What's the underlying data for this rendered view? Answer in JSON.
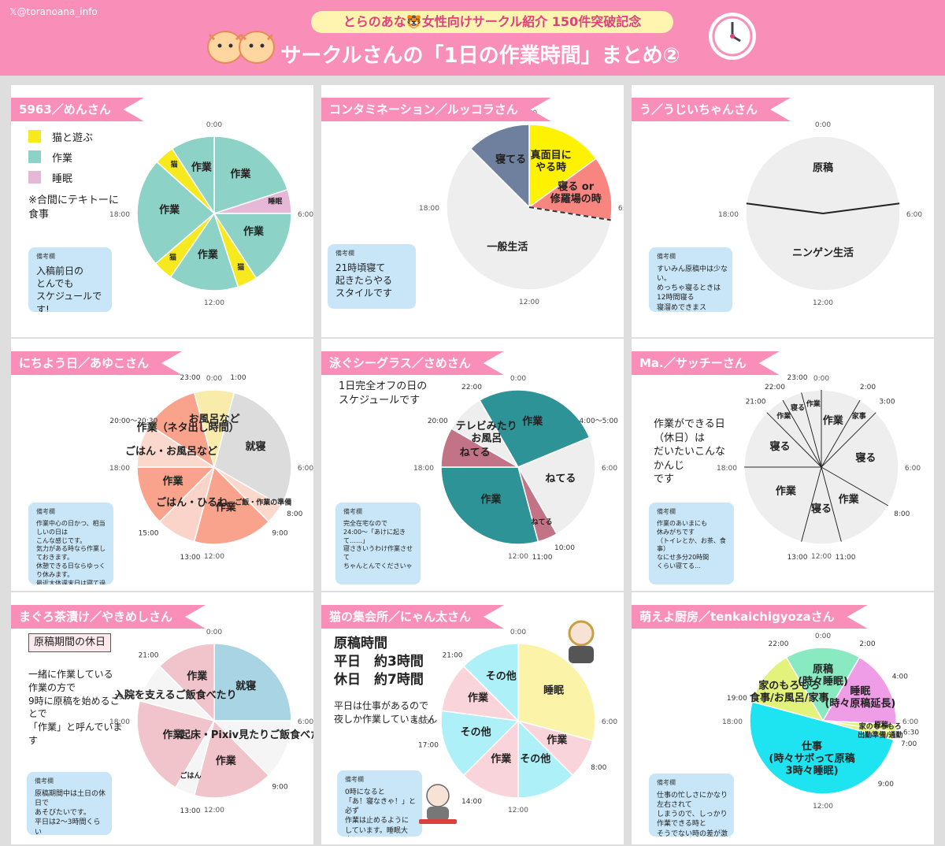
{
  "header": {
    "account": "@toranoana_info",
    "badge": "とらのあな🐯女性向けサークル紹介 150件突破記念",
    "title": "サークルさんの「1日の作業時間」まとめ②"
  },
  "note_label": "備考欄",
  "chart_data": [
    {
      "type": "pie",
      "title": "5963／めんさん",
      "hour_labels": [
        "0:00",
        "6:00",
        "12:00",
        "18:00"
      ],
      "legend": [
        {
          "label": "猫と遊ぶ",
          "color": "#f6ea1f"
        },
        {
          "label": "作業",
          "color": "#8dd2c6"
        },
        {
          "label": "睡眠",
          "color": "#e5b8d8"
        }
      ],
      "legend_note": "※合間にテキトーに\n食事",
      "note": "入稿前日の\nとんでも\nスケジュールです!",
      "slices": [
        {
          "label": "作業",
          "start": 0,
          "end": 4.8,
          "color": "#8dd2c6"
        },
        {
          "label": "睡眠",
          "start": 4.8,
          "end": 6,
          "color": "#e5b8d8"
        },
        {
          "label": "作業",
          "start": 6,
          "end": 9.8,
          "color": "#8dd2c6"
        },
        {
          "label": "猫",
          "start": 9.8,
          "end": 10.8,
          "color": "#f6ea1f"
        },
        {
          "label": "作業",
          "start": 10.8,
          "end": 14.3,
          "color": "#8dd2c6"
        },
        {
          "label": "猫",
          "start": 14.3,
          "end": 15.3,
          "color": "#f6ea1f"
        },
        {
          "label": "作業",
          "start": 15.3,
          "end": 20.8,
          "color": "#8dd2c6"
        },
        {
          "label": "猫",
          "start": 20.8,
          "end": 21.8,
          "color": "#f6ea1f"
        },
        {
          "label": "作業",
          "start": 21.8,
          "end": 24,
          "color": "#8dd2c6"
        }
      ]
    },
    {
      "type": "pie",
      "title": "コンタミネーション／ルッコラさん",
      "hour_labels": [
        "0:00",
        "6:00",
        "12:00",
        "18:00"
      ],
      "note": "21時頃寝て\n起きたらやる\nスタイルです",
      "slices": [
        {
          "label": "真面目に\nやる時",
          "start": 0,
          "end": 3.6,
          "color": "#fff200"
        },
        {
          "label": "寝る or\n修羅場の時",
          "start": 3.6,
          "end": 6.6,
          "color": "#f8857f"
        },
        {
          "label": "一般生活",
          "start": 6.6,
          "end": 21,
          "color": "#eeeeee"
        },
        {
          "label": "寝てる",
          "start": 21,
          "end": 24,
          "color": "#6f7f9e"
        }
      ]
    },
    {
      "type": "pie",
      "title": "う／うじいちゃんさん",
      "hour_labels": [
        "0:00",
        "6:00",
        "12:00",
        "18:00"
      ],
      "note": "すいみん原稿中は少ない。\nめっちゃ寝るときは\n12時間寝る\n寝溜めできまス",
      "slices": [
        {
          "label": "原稿",
          "start": 18.5,
          "end": 29.5,
          "color": "#eeeeee"
        },
        {
          "label": "ニンゲン生活",
          "start": 5.5,
          "end": 18.5,
          "color": "#eeeeee"
        }
      ]
    },
    {
      "type": "pie",
      "title": "にちよう日／あゆこさん",
      "hour_labels": [
        "0:00",
        "6:00",
        "12:00",
        "18:00"
      ],
      "tick_labels": [
        "1:00",
        "8:00",
        "9:00",
        "13:00",
        "15:00",
        "20:00〜20:30",
        "23:00"
      ],
      "note": "作業中心の日かつ、相当しいの日は\nこんな感じです。\n気力がある時なら作業しておきます。\n休憩できる日ならゆっくり休みます。\n最近大体週末日は寝て過ごしてます…",
      "slices": [
        {
          "label": "就寝",
          "start": 1,
          "end": 8,
          "color": "#dcdcdc"
        },
        {
          "label": "ご飯・作業の準備",
          "start": 8,
          "end": 9,
          "color": "#fad9cc"
        },
        {
          "label": "作業",
          "start": 9,
          "end": 13,
          "color": "#f9a38d"
        },
        {
          "label": "ごはん・ひるね",
          "start": 13,
          "end": 15,
          "color": "#fad4c8"
        },
        {
          "label": "作業",
          "start": 15,
          "end": 18,
          "color": "#f9a38d"
        },
        {
          "label": "ごはん・お風呂など",
          "start": 18,
          "end": 20.2,
          "color": "#fad9cc"
        },
        {
          "label": "作業（ネタ出し時間）",
          "start": 20.2,
          "end": 23,
          "color": "#f9a38d"
        },
        {
          "label": "お風呂など",
          "start": 23,
          "end": 25,
          "color": "#f9ebaa"
        }
      ]
    },
    {
      "type": "pie",
      "title": "泳ぐシーグラス／さめさん",
      "hour_labels": [
        "0:00",
        "6:00",
        "12:00",
        "18:00"
      ],
      "tick_labels": [
        "22:00",
        "4:00〜5:00",
        "10:00",
        "11:00",
        "20:00"
      ],
      "note_head": "1日完全オフの日の\nスケジュールです",
      "note": "完全在宅なので\n24:00〜「あけに起きて……」\n寝さきいうわけ作業させて\nちゃんとんでくださいゃ",
      "slices": [
        {
          "label": "作業",
          "start": 22,
          "end": 28.5,
          "color": "#2e9396"
        },
        {
          "label": "ねてる",
          "start": 4.5,
          "end": 10,
          "color": "#eeeeee"
        },
        {
          "label": "ねてる",
          "start": 10,
          "end": 11,
          "color": "#c27486"
        },
        {
          "label": "作業",
          "start": 11,
          "end": 18,
          "color": "#2e9396"
        },
        {
          "label": "ねてる",
          "start": 18,
          "end": 20,
          "color": "#c27486"
        },
        {
          "label": "テレビみたり\nお風呂",
          "start": 20,
          "end": 22,
          "color": "#eeeeee"
        }
      ]
    },
    {
      "type": "pie",
      "title": "Ma.／サッチーさん",
      "hour_labels": [
        "0:00",
        "6:00",
        "12:00",
        "18:00"
      ],
      "tick_labels": [
        "23:00",
        "2:00",
        "3:00",
        "8:00",
        "11:00",
        "13:00",
        "21:00",
        "22:00"
      ],
      "note_head": "作業ができる日\n（休日）は\nだいたいこんな\nかんじ\nです",
      "note": "作業のあいまにも\n休みがちです\n（トイレとか、お茶、食事）\nなにせ多分20時間\nくらい寝てる…",
      "slices": [
        {
          "label": "作業",
          "start": 0,
          "end": 2,
          "color": "#eeeeee"
        },
        {
          "label": "家事",
          "start": 2,
          "end": 3,
          "color": "#eeeeee"
        },
        {
          "label": "寝る",
          "start": 3,
          "end": 8,
          "color": "#eeeeee"
        },
        {
          "label": "作業",
          "start": 8,
          "end": 11,
          "color": "#eeeeee"
        },
        {
          "label": "寝る",
          "start": 11,
          "end": 13,
          "color": "#eeeeee"
        },
        {
          "label": "作業",
          "start": 13,
          "end": 18,
          "color": "#eeeeee"
        },
        {
          "label": "寝る",
          "start": 18,
          "end": 21,
          "color": "#eeeeee"
        },
        {
          "label": "作業",
          "start": 21,
          "end": 22,
          "color": "#eeeeee"
        },
        {
          "label": "寝る",
          "start": 22,
          "end": 23,
          "color": "#eeeeee"
        },
        {
          "label": "作業",
          "start": 23,
          "end": 24,
          "color": "#eeeeee"
        }
      ]
    },
    {
      "type": "pie",
      "title": "まぐろ茶漬け／やきめしさん",
      "hour_labels": [
        "0:00",
        "6:00",
        "12:00",
        "18:00"
      ],
      "tick_labels": [
        "9:00",
        "13:00",
        "19:00",
        "21:00"
      ],
      "note_head": "原稿期間の休日",
      "side": "一緒に作業している\n作業の方で\n9時に原稿を始めることで\n「作業」と呼んでいます",
      "note": "原稿期間中は土日の休日で\nあそびたいです。\n平日は2〜3時間くらい\nネットサーフィンとかで\n遊ぶことが多いです。",
      "slices": [
        {
          "label": "就寝",
          "start": 0,
          "end": 6,
          "color": "#a9d4e4"
        },
        {
          "label": "起床・Pixiv見たりご飯食べたり",
          "start": 6,
          "end": 9,
          "color": "#f5f5f5"
        },
        {
          "label": "作業",
          "start": 9,
          "end": 13,
          "color": "#f1c4cb"
        },
        {
          "label": "ごはん",
          "start": 13,
          "end": 14,
          "color": "#f5f5f5"
        },
        {
          "label": "作業",
          "start": 14,
          "end": 19,
          "color": "#f1c4cb"
        },
        {
          "label": "入院を支えるご飯食べたり",
          "start": 19,
          "end": 21,
          "color": "#f5f5f5"
        },
        {
          "label": "作業",
          "start": 21,
          "end": 24,
          "color": "#f1c4cb"
        }
      ]
    },
    {
      "type": "pie",
      "title": "猫の集会所／にゃん太さん",
      "hour_labels": [
        "0:00",
        "6:00",
        "12:00",
        "18:00"
      ],
      "tick_labels": [
        "21:00",
        "8:00",
        "14:00",
        "17:00"
      ],
      "side_head": "原稿時間\n平日　約3時間\n休日　約7時間",
      "side": "平日は仕事があるので\n夜しか作業していません",
      "note": "0時になると\n「あ！寝なきゃ！」と必ず\n作業は止めるように\nしています。睡眠大事！\n寝不足は本当に体や体調に\nこたえるので…涙",
      "slices": [
        {
          "label": "睡眠",
          "start": 0,
          "end": 7,
          "color": "#fbf4a8"
        },
        {
          "label": "作業",
          "start": 7,
          "end": 9,
          "color": "#f9d4da"
        },
        {
          "label": "その他",
          "start": 9,
          "end": 12,
          "color": "#aef0f7"
        },
        {
          "label": "作業",
          "start": 12,
          "end": 15,
          "color": "#f9d4da"
        },
        {
          "label": "その他",
          "start": 15,
          "end": 18.5,
          "color": "#aef0f7"
        },
        {
          "label": "作業",
          "start": 18.5,
          "end": 21,
          "color": "#f9d4da"
        },
        {
          "label": "その他",
          "start": 21,
          "end": 24,
          "color": "#aef0f7"
        }
      ]
    },
    {
      "type": "pie",
      "title": "萌えよ厨房／tenkaichigyozaさん",
      "hour_labels": [
        "0:00",
        "6:00",
        "12:00",
        "18:00"
      ],
      "tick_labels": [
        "22:00",
        "2:00",
        "4:00",
        "6:30",
        "7:00",
        "9:00",
        "19:00"
      ],
      "note": "仕事の忙しさにかなり左右されて\nしまうので、しっかり作業できる時と\nそうでない時の差が激しいです。\n大体こんな感じです。",
      "slices": [
        {
          "label": "原稿\n(時々睡眠)",
          "start": 22,
          "end": 26,
          "color": "#89eac2"
        },
        {
          "label": "睡眠\n(時々原稿延長)",
          "start": 2,
          "end": 6.2,
          "color": "#ee9de6"
        },
        {
          "label": "原稿",
          "start": 6.2,
          "end": 6.6,
          "color": "#e2f27a"
        },
        {
          "label": "家のもろもろ\n出勤準備/通勤",
          "start": 6.6,
          "end": 7,
          "color": "#e2f27a"
        },
        {
          "label": "仕事\n(時々サボって原稿\n3時々睡眠)",
          "start": 7,
          "end": 19,
          "color": "#1ee3f0"
        },
        {
          "label": "家のもろもろ\n食事/お風呂/家事",
          "start": 19,
          "end": 22,
          "color": "#e2f27a"
        }
      ]
    }
  ]
}
